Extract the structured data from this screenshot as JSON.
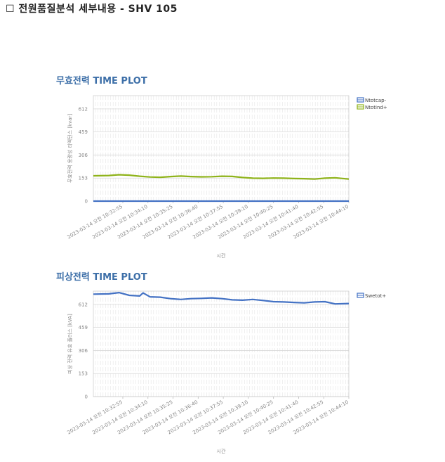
{
  "page": {
    "title": "☐ 전원품질분석 세부내용 - SHV 105"
  },
  "chart_data": [
    {
      "id": "reactive",
      "type": "line",
      "title": "무효전력 TIME PLOT",
      "xlabel": "시간",
      "ylabel": "무효전력 용량성 리액턴스 [kvar]",
      "ylim": [
        0,
        700
      ],
      "yticks": [
        0,
        153,
        306,
        459,
        612
      ],
      "xticks": [
        "2023-03-14 오전 10:32:55",
        "2023-03-14 오전 10:34:10",
        "2023-03-14 오전 10:35:25",
        "2023-03-14 오전 10:36:40",
        "2023-03-14 오전 10:37:55",
        "2023-03-14 오전 10:39:10",
        "2023-03-14 오전 10:40:25",
        "2023-03-14 오전 10:41:40",
        "2023-03-14 오전 10:42:55",
        "2023-03-14 오전 10:44:10"
      ],
      "xrange": [
        "10:31:55",
        "10:44:20"
      ],
      "grid": true,
      "legend_position": "top-right",
      "series": [
        {
          "name": "Ntotcap-",
          "color": "#4472c4",
          "x": [
            "10:31:55",
            "10:44:20"
          ],
          "values": [
            0,
            0
          ]
        },
        {
          "name": "Ntotind+",
          "color": "#8fb31a",
          "x": [
            "10:31:55",
            "10:32:40",
            "10:33:10",
            "10:33:40",
            "10:34:10",
            "10:34:40",
            "10:35:10",
            "10:35:40",
            "10:36:10",
            "10:36:40",
            "10:37:10",
            "10:37:40",
            "10:38:10",
            "10:38:40",
            "10:39:10",
            "10:39:40",
            "10:40:10",
            "10:40:40",
            "10:41:10",
            "10:41:40",
            "10:42:10",
            "10:42:40",
            "10:43:10",
            "10:43:40",
            "10:44:20"
          ],
          "values": [
            168,
            170,
            175,
            172,
            165,
            160,
            158,
            163,
            166,
            163,
            161,
            162,
            165,
            164,
            157,
            152,
            151,
            153,
            152,
            150,
            149,
            146,
            152,
            155,
            146
          ]
        }
      ]
    },
    {
      "id": "apparent",
      "type": "line",
      "title": "피상전력 TIME PLOT",
      "xlabel": "시간",
      "ylabel": "피상 전력 유효 플러스 [kVA]",
      "ylim": [
        0,
        700
      ],
      "yticks": [
        0,
        153,
        306,
        459,
        612
      ],
      "xticks": [
        "2023-03-14 오전 10:32:55",
        "2023-03-14 오전 10:34:10",
        "2023-03-14 오전 10:35:25",
        "2023-03-14 오전 10:36:40",
        "2023-03-14 오전 10:37:55",
        "2023-03-14 오전 10:39:10",
        "2023-03-14 오전 10:40:25",
        "2023-03-14 오전 10:41:40",
        "2023-03-14 오전 10:42:55",
        "2023-03-14 오전 10:44:10"
      ],
      "xrange": [
        "10:31:55",
        "10:44:20"
      ],
      "grid": true,
      "legend_position": "top-right",
      "series": [
        {
          "name": "Swetot+",
          "color": "#4472c4",
          "x": [
            "10:31:55",
            "10:32:40",
            "10:33:10",
            "10:33:40",
            "10:34:10",
            "10:34:20",
            "10:34:40",
            "10:35:10",
            "10:35:40",
            "10:36:10",
            "10:36:40",
            "10:37:10",
            "10:37:40",
            "10:38:10",
            "10:38:40",
            "10:39:10",
            "10:39:40",
            "10:40:10",
            "10:40:40",
            "10:41:10",
            "10:41:40",
            "10:42:10",
            "10:42:40",
            "10:43:10",
            "10:43:40",
            "10:44:20"
          ],
          "values": [
            680,
            682,
            690,
            672,
            668,
            688,
            662,
            660,
            650,
            645,
            650,
            652,
            655,
            650,
            642,
            640,
            645,
            638,
            630,
            628,
            625,
            622,
            628,
            630,
            615,
            618
          ]
        }
      ]
    }
  ]
}
